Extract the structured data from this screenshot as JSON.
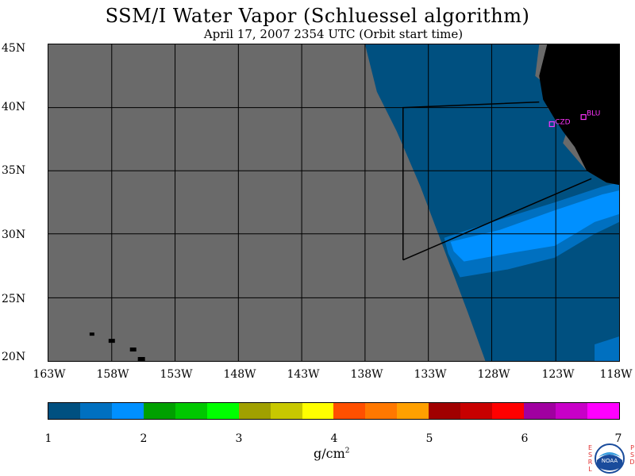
{
  "title": "SSM/I Water Vapor (Schluessel algorithm)",
  "subtitle": "April 17, 2007  2354 UTC  (Orbit start time)",
  "map": {
    "lat_labels": [
      "45N",
      "40N",
      "35N",
      "30N",
      "25N",
      "20N"
    ],
    "lon_labels": [
      "163W",
      "158W",
      "153W",
      "148W",
      "143W",
      "138W",
      "133W",
      "128W",
      "123W",
      "118W"
    ],
    "stations": [
      {
        "label": "CZD",
        "lon": -123.1,
        "lat": 38.6
      },
      {
        "label": "BLU",
        "lon": -120.9,
        "lat": 39.3
      }
    ],
    "colors": {
      "no_data": "#6a6a6a",
      "land": "#000000",
      "grid": "#000000",
      "station": "#ff33ff"
    }
  },
  "colorbar": {
    "colors": [
      "#005080",
      "#0070c0",
      "#0090ff",
      "#00a000",
      "#00c800",
      "#00ff00",
      "#a0a000",
      "#c8c800",
      "#ffff00",
      "#ff5000",
      "#ff7800",
      "#ffa000",
      "#a00000",
      "#c80000",
      "#ff0000",
      "#a000a0",
      "#c800c8",
      "#ff00ff"
    ],
    "ticks": [
      "1",
      "2",
      "3",
      "4",
      "5",
      "6",
      "7"
    ],
    "unit": "g/cm",
    "unit_sup": "2"
  },
  "logo": {
    "left_letters": "ESRL",
    "right_letters": "PSD",
    "text": "NOAA"
  }
}
